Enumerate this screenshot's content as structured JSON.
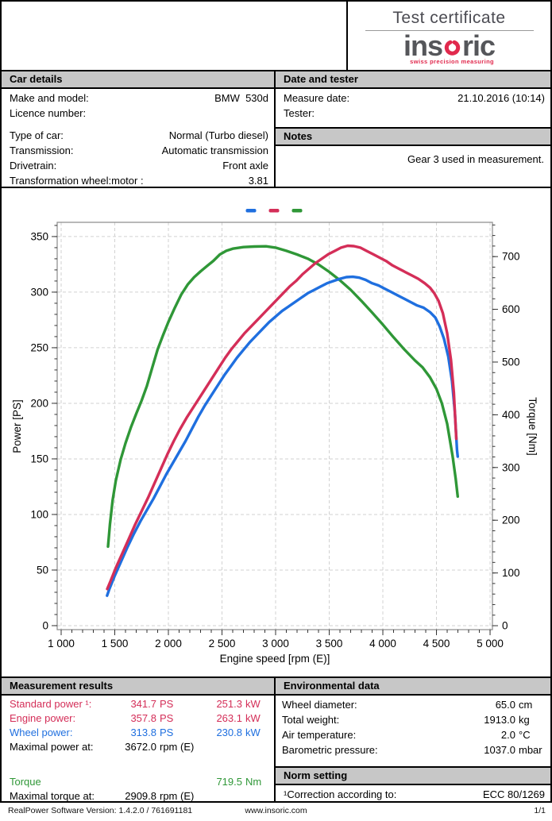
{
  "header": {
    "title": "Test certificate",
    "brand": {
      "pre": "ins",
      "post": "ric",
      "tagline": "swiss precision measuring"
    }
  },
  "colors": {
    "red": "#d42e58",
    "blue": "#1f6fdf",
    "green": "#2f9737",
    "black": "#000000",
    "brand_gray": "#55565a",
    "brand_red": "#e1294d",
    "section_bar": "#c7c7c7"
  },
  "car_details": {
    "title": "Car details",
    "rows": [
      {
        "label": "Make and model:",
        "value": "BMW  530d"
      },
      {
        "label": "Licence number:",
        "value": ""
      },
      {
        "spacer": true
      },
      {
        "label": "Type of car:",
        "value": "Normal (Turbo diesel)"
      },
      {
        "label": "Transmission:",
        "value": "Automatic transmission"
      },
      {
        "label": "Drivetrain:",
        "value": "Front axle"
      },
      {
        "label": "Transformation wheel:motor :",
        "value": "3.81"
      }
    ]
  },
  "date_tester": {
    "title": "Date and tester",
    "rows": [
      {
        "label": "Measure date:",
        "value": "21.10.2016 (10:14)"
      },
      {
        "label": "Tester:",
        "value": ""
      }
    ]
  },
  "notes": {
    "title": "Notes",
    "text": "Gear 3 used in measurement."
  },
  "chart_data": {
    "type": "line",
    "x_axis": {
      "label": "Engine speed [rpm (E)]",
      "min": 963,
      "max": 5022,
      "major_ticks": [
        1000,
        1500,
        2000,
        2500,
        3000,
        3500,
        4000,
        4500,
        5000
      ],
      "tick_labels": [
        "1 000",
        "1 500",
        "2 000",
        "2 500",
        "3 000",
        "3 500",
        "4 000",
        "4 500",
        "5 000"
      ],
      "minor_step": 100
    },
    "y_left": {
      "label": "Power [PS]",
      "min": -3.6,
      "max": 362.8,
      "major_ticks": [
        0,
        50,
        100,
        150,
        200,
        250,
        300,
        350
      ],
      "minor_step": 10
    },
    "y_right": {
      "label": "Torque [Nm]",
      "min": -7.5,
      "max": 765,
      "major_ticks": [
        0,
        100,
        200,
        300,
        400,
        500,
        600,
        700
      ],
      "minor_step": 20
    },
    "grid": true,
    "legend_position": "top-center",
    "series": [
      {
        "name": "Wheel power",
        "unit": "PS",
        "axis": "left",
        "color": "#1f6fdf",
        "points": [
          [
            1428,
            27
          ],
          [
            1450,
            33
          ],
          [
            1500,
            45
          ],
          [
            1560,
            58
          ],
          [
            1620,
            71
          ],
          [
            1680,
            83
          ],
          [
            1740,
            94
          ],
          [
            1800,
            104
          ],
          [
            1860,
            114
          ],
          [
            1920,
            125
          ],
          [
            1980,
            136
          ],
          [
            2040,
            146
          ],
          [
            2100,
            156
          ],
          [
            2160,
            166
          ],
          [
            2220,
            177
          ],
          [
            2280,
            188
          ],
          [
            2340,
            198
          ],
          [
            2400,
            207
          ],
          [
            2460,
            216
          ],
          [
            2520,
            225
          ],
          [
            2580,
            233
          ],
          [
            2640,
            241
          ],
          [
            2700,
            248
          ],
          [
            2760,
            255
          ],
          [
            2820,
            261
          ],
          [
            2880,
            267
          ],
          [
            2940,
            273
          ],
          [
            3000,
            278
          ],
          [
            3060,
            283
          ],
          [
            3120,
            287
          ],
          [
            3180,
            291
          ],
          [
            3240,
            295
          ],
          [
            3300,
            299
          ],
          [
            3360,
            302
          ],
          [
            3420,
            305
          ],
          [
            3480,
            308
          ],
          [
            3540,
            310
          ],
          [
            3600,
            312
          ],
          [
            3660,
            313.5
          ],
          [
            3720,
            313.8
          ],
          [
            3780,
            313
          ],
          [
            3840,
            311
          ],
          [
            3900,
            308
          ],
          [
            3960,
            306
          ],
          [
            4020,
            303
          ],
          [
            4080,
            300
          ],
          [
            4140,
            297
          ],
          [
            4200,
            294
          ],
          [
            4260,
            291
          ],
          [
            4320,
            288
          ],
          [
            4380,
            286
          ],
          [
            4440,
            282
          ],
          [
            4490,
            277
          ],
          [
            4530,
            269
          ],
          [
            4570,
            258
          ],
          [
            4610,
            242
          ],
          [
            4645,
            220
          ],
          [
            4672,
            192
          ],
          [
            4692,
            158
          ],
          [
            4698,
            152
          ]
        ]
      },
      {
        "name": "Standard power",
        "unit": "PS",
        "axis": "left",
        "color": "#d42e58",
        "points": [
          [
            1430,
            33
          ],
          [
            1460,
            40
          ],
          [
            1510,
            52
          ],
          [
            1570,
            65
          ],
          [
            1630,
            78
          ],
          [
            1690,
            91
          ],
          [
            1750,
            103
          ],
          [
            1810,
            115
          ],
          [
            1870,
            128
          ],
          [
            1930,
            141
          ],
          [
            1990,
            154
          ],
          [
            2050,
            166
          ],
          [
            2110,
            177
          ],
          [
            2170,
            187
          ],
          [
            2230,
            196
          ],
          [
            2290,
            205
          ],
          [
            2350,
            214
          ],
          [
            2410,
            223
          ],
          [
            2470,
            232
          ],
          [
            2530,
            241
          ],
          [
            2590,
            249
          ],
          [
            2650,
            256
          ],
          [
            2710,
            263
          ],
          [
            2770,
            269
          ],
          [
            2830,
            275
          ],
          [
            2890,
            281
          ],
          [
            2950,
            287
          ],
          [
            3010,
            293
          ],
          [
            3070,
            299
          ],
          [
            3130,
            305
          ],
          [
            3190,
            310
          ],
          [
            3250,
            316
          ],
          [
            3310,
            321
          ],
          [
            3370,
            326
          ],
          [
            3430,
            330
          ],
          [
            3490,
            334
          ],
          [
            3550,
            337
          ],
          [
            3610,
            340
          ],
          [
            3672,
            341.7
          ],
          [
            3730,
            341.4
          ],
          [
            3790,
            340
          ],
          [
            3850,
            337
          ],
          [
            3910,
            334
          ],
          [
            3970,
            331
          ],
          [
            4030,
            328
          ],
          [
            4090,
            324
          ],
          [
            4150,
            321
          ],
          [
            4210,
            318
          ],
          [
            4270,
            315
          ],
          [
            4330,
            312
          ],
          [
            4390,
            308
          ],
          [
            4440,
            304
          ],
          [
            4480,
            299
          ],
          [
            4520,
            292
          ],
          [
            4560,
            281
          ],
          [
            4600,
            263
          ],
          [
            4635,
            239
          ],
          [
            4662,
            210
          ],
          [
            4685,
            168
          ]
        ]
      },
      {
        "name": "Torque",
        "unit": "Nm",
        "axis": "right",
        "color": "#2f9737",
        "points": [
          [
            1437,
            150
          ],
          [
            1455,
            192
          ],
          [
            1480,
            238
          ],
          [
            1510,
            275
          ],
          [
            1555,
            315
          ],
          [
            1600,
            346
          ],
          [
            1650,
            376
          ],
          [
            1700,
            402
          ],
          [
            1750,
            427
          ],
          [
            1800,
            455
          ],
          [
            1850,
            490
          ],
          [
            1900,
            524
          ],
          [
            1950,
            551
          ],
          [
            2000,
            576
          ],
          [
            2060,
            603
          ],
          [
            2120,
            628
          ],
          [
            2180,
            647
          ],
          [
            2240,
            661
          ],
          [
            2300,
            672
          ],
          [
            2360,
            682
          ],
          [
            2420,
            692
          ],
          [
            2480,
            704
          ],
          [
            2540,
            711
          ],
          [
            2600,
            715
          ],
          [
            2700,
            718
          ],
          [
            2800,
            719
          ],
          [
            2910,
            719.5
          ],
          [
            3000,
            717
          ],
          [
            3100,
            711
          ],
          [
            3200,
            704
          ],
          [
            3300,
            696
          ],
          [
            3400,
            685
          ],
          [
            3500,
            671
          ],
          [
            3600,
            655
          ],
          [
            3700,
            637
          ],
          [
            3800,
            616
          ],
          [
            3900,
            594
          ],
          [
            4000,
            571
          ],
          [
            4100,
            547
          ],
          [
            4200,
            524
          ],
          [
            4300,
            503
          ],
          [
            4370,
            490
          ],
          [
            4440,
            471
          ],
          [
            4500,
            449
          ],
          [
            4550,
            422
          ],
          [
            4600,
            383
          ],
          [
            4650,
            322
          ],
          [
            4680,
            278
          ],
          [
            4698,
            245
          ]
        ]
      }
    ]
  },
  "measurement": {
    "title": "Measurement results",
    "rows": [
      {
        "label": "Standard power ¹:",
        "v1": "341.7",
        "u1": "PS",
        "v2": "251.3",
        "u2": "kW",
        "color": "red"
      },
      {
        "label": "Engine power:",
        "v1": "357.8",
        "u1": "PS",
        "v2": "263.1",
        "u2": "kW",
        "color": "red"
      },
      {
        "label": "Wheel power:",
        "v1": "313.8",
        "u1": "PS",
        "v2": "230.8",
        "u2": "kW",
        "color": "blue"
      },
      {
        "label": "Maximal power at:",
        "v1": "3672.0",
        "u1": "rpm (E)",
        "v2": "",
        "u2": "",
        "color": "black"
      },
      {
        "spacer": true
      },
      {
        "label": "Torque",
        "v1": "",
        "u1": "",
        "v2": "719.5",
        "u2": "Nm",
        "color": "green"
      },
      {
        "label": "Maximal torque at:",
        "v1": "2909.8",
        "u1": "rpm (E)",
        "v2": "",
        "u2": "",
        "color": "black"
      }
    ]
  },
  "environmental": {
    "title": "Environmental data",
    "rows": [
      {
        "label": "Wheel diameter:",
        "value": "65.0",
        "unit": "cm"
      },
      {
        "label": "Total weight:",
        "value": "1913.0",
        "unit": "kg"
      },
      {
        "label": "Air temperature:",
        "value": "2.0",
        "unit": "°C"
      },
      {
        "label": "Barometric pressure:",
        "value": "1037.0",
        "unit": "mbar"
      }
    ]
  },
  "norm": {
    "title": "Norm setting",
    "label": "¹Correction according to:",
    "value": "ECC 80/1269"
  },
  "footer": {
    "left": "RealPower Software Version: 1.4.2.0 / 761691181",
    "center": "www.insoric.com",
    "right": "1/1"
  }
}
